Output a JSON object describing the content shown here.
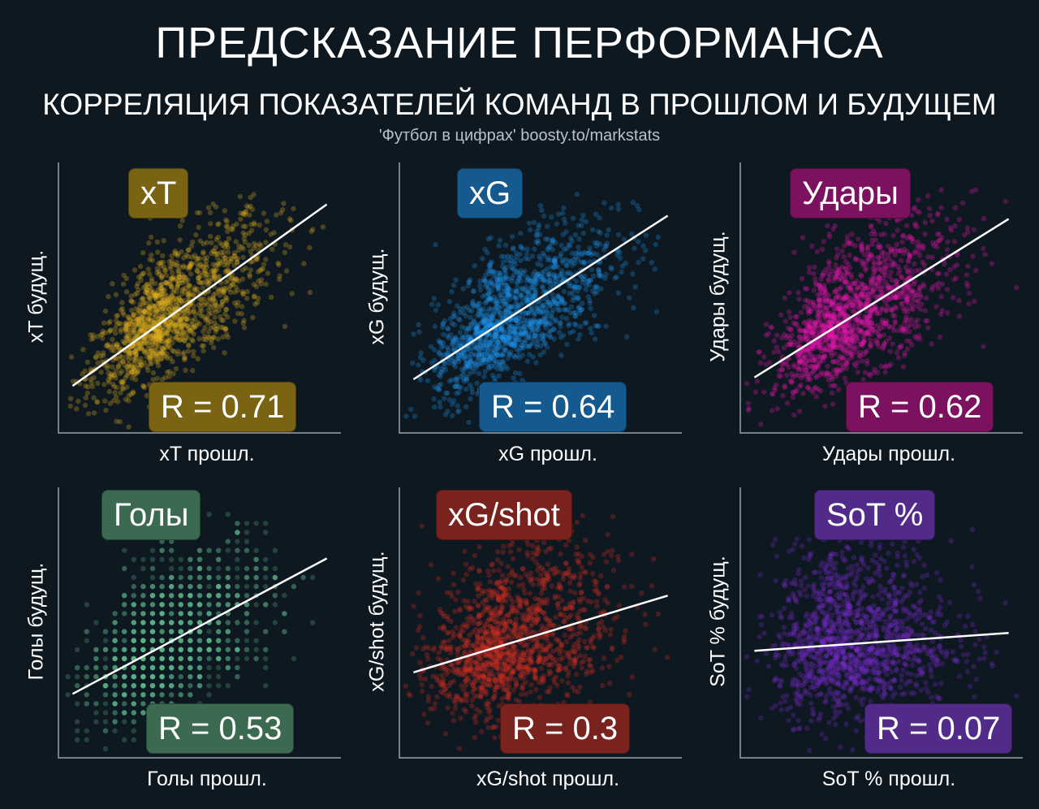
{
  "header": {
    "title": "ПРЕДСКАЗАНИЕ ПЕРФОРМАНСА",
    "subtitle": "КОРРЕЛЯЦИЯ ПОКАЗАТЕЛЕЙ КОМАНД В ПРОШЛОМ И БУДУЩЕМ",
    "source": "'Футбол в цифрах' boosty.to/markstats"
  },
  "chart_data": [
    {
      "type": "scatter",
      "title": "xT",
      "xlabel": "xT прошл.",
      "ylabel": "xT будущ.",
      "r_label": "R = 0.71",
      "r": 0.71,
      "color": "#e6b51b",
      "badge_color": "#7a6414"
    },
    {
      "type": "scatter",
      "title": "xG",
      "xlabel": "xG прошл.",
      "ylabel": "xG будущ.",
      "r_label": "R = 0.64",
      "r": 0.64,
      "color": "#1e96f0",
      "badge_color": "#155a8e"
    },
    {
      "type": "scatter",
      "title": "Удары",
      "xlabel": "Удары прошл.",
      "ylabel": "Удары будущ.",
      "r_label": "R = 0.62",
      "r": 0.62,
      "color": "#f015b4",
      "badge_color": "#7c125f"
    },
    {
      "type": "scatter",
      "title": "Голы",
      "xlabel": "Голы прошл.",
      "ylabel": "Голы будущ.",
      "r_label": "R = 0.53",
      "r": 0.53,
      "color": "#5fb487",
      "badge_color": "#3b6a50"
    },
    {
      "type": "scatter",
      "title": "xG/shot",
      "xlabel": "xG/shot прошл.",
      "ylabel": "xG/shot будущ.",
      "r_label": "R = 0.3",
      "r": 0.3,
      "color": "#dc3020",
      "badge_color": "#7a221d"
    },
    {
      "type": "scatter",
      "title": "SoT %",
      "xlabel": "SoT % прошл.",
      "ylabel": "SoT % будущ.",
      "r_label": "R = 0.07",
      "r": 0.07,
      "color": "#7a2ad2",
      "badge_color": "#522a8a"
    }
  ]
}
